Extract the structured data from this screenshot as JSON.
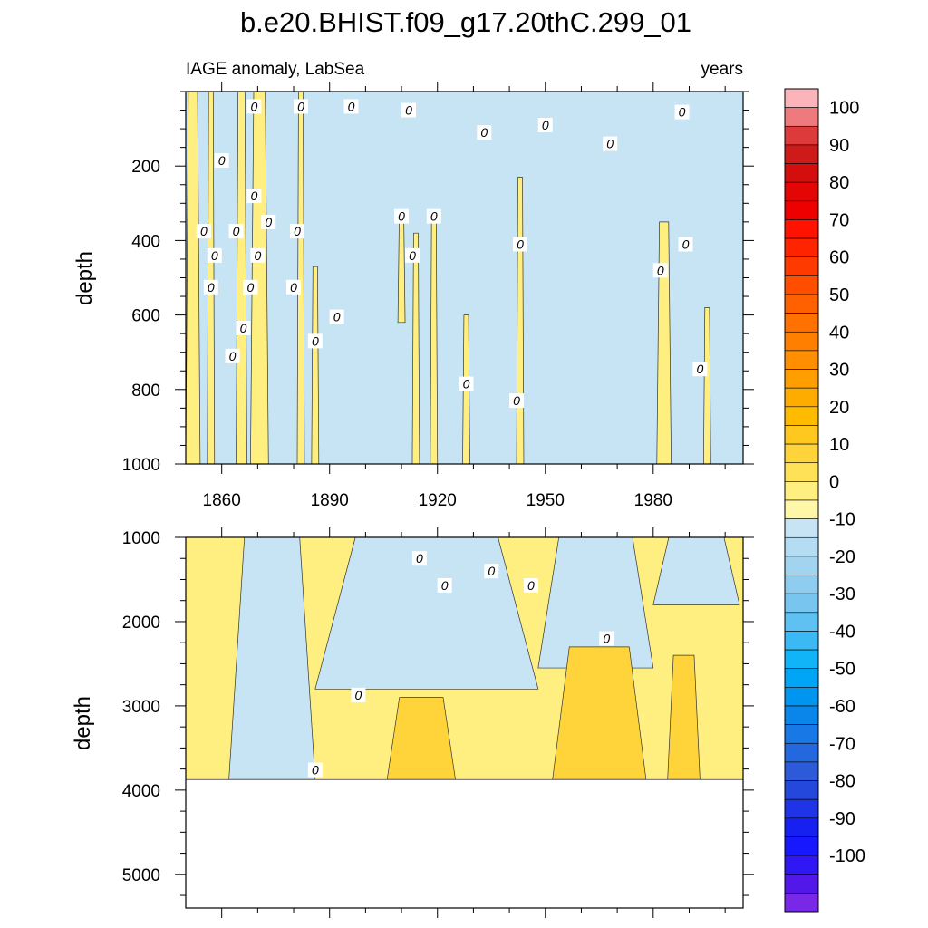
{
  "chart_data": [
    {
      "type": "heatmap",
      "panel": "upper",
      "title": "b.e20.BHIST.f09_g17.20thC.299_01",
      "subtitle_left": "IAGE anomaly, LabSea",
      "subtitle_right": "years",
      "xlabel": "",
      "ylabel": "depth",
      "xlim": [
        1850,
        2005
      ],
      "ylim": [
        0,
        1000
      ],
      "y_inverted": true,
      "x_ticks": [
        1860,
        1890,
        1920,
        1950,
        1980
      ],
      "y_ticks": [
        200,
        400,
        600,
        800,
        1000
      ],
      "background_bin": [
        -10,
        0
      ],
      "contour_label": "0",
      "regions": [
        {
          "bin": [
            0,
            10
          ],
          "depth_top": 0,
          "depth_bottom": 1000,
          "x_start": 1850,
          "x_end": 1854
        },
        {
          "bin": [
            0,
            10
          ],
          "depth_top": 0,
          "depth_bottom": 1000,
          "x_start": 1856,
          "x_end": 1858
        },
        {
          "bin": [
            0,
            10
          ],
          "depth_top": 0,
          "depth_bottom": 1000,
          "x_start": 1864,
          "x_end": 1867
        },
        {
          "bin": [
            0,
            10
          ],
          "depth_top": 0,
          "depth_bottom": 1000,
          "x_start": 1868,
          "x_end": 1873
        },
        {
          "bin": [
            0,
            10
          ],
          "depth_top": 0,
          "depth_bottom": 1000,
          "x_start": 1881,
          "x_end": 1883
        },
        {
          "bin": [
            0,
            10
          ],
          "depth_top": 470,
          "depth_bottom": 1000,
          "x_start": 1885,
          "x_end": 1887
        },
        {
          "bin": [
            0,
            10
          ],
          "depth_top": 340,
          "depth_bottom": 620,
          "x_start": 1909,
          "x_end": 1911
        },
        {
          "bin": [
            0,
            10
          ],
          "depth_top": 380,
          "depth_bottom": 1000,
          "x_start": 1913,
          "x_end": 1915
        },
        {
          "bin": [
            0,
            10
          ],
          "depth_top": 330,
          "depth_bottom": 1000,
          "x_start": 1918,
          "x_end": 1920
        },
        {
          "bin": [
            0,
            10
          ],
          "depth_top": 600,
          "depth_bottom": 1000,
          "x_start": 1927,
          "x_end": 1929
        },
        {
          "bin": [
            0,
            10
          ],
          "depth_top": 230,
          "depth_bottom": 1000,
          "x_start": 1942,
          "x_end": 1944
        },
        {
          "bin": [
            0,
            10
          ],
          "depth_top": 350,
          "depth_bottom": 1000,
          "x_start": 1981,
          "x_end": 1985
        },
        {
          "bin": [
            0,
            10
          ],
          "depth_top": 580,
          "depth_bottom": 1000,
          "x_start": 1994,
          "x_end": 1996
        }
      ],
      "contour_label_points": [
        {
          "x": 1869,
          "depth": 40
        },
        {
          "x": 1882,
          "depth": 40
        },
        {
          "x": 1896,
          "depth": 40
        },
        {
          "x": 1912,
          "depth": 50
        },
        {
          "x": 1988,
          "depth": 55
        },
        {
          "x": 1950,
          "depth": 90
        },
        {
          "x": 1933,
          "depth": 110
        },
        {
          "x": 1968,
          "depth": 140
        },
        {
          "x": 1860,
          "depth": 185
        },
        {
          "x": 1869,
          "depth": 280
        },
        {
          "x": 1873,
          "depth": 350
        },
        {
          "x": 1910,
          "depth": 335
        },
        {
          "x": 1919,
          "depth": 335
        },
        {
          "x": 1855,
          "depth": 375
        },
        {
          "x": 1864,
          "depth": 375
        },
        {
          "x": 1881,
          "depth": 375
        },
        {
          "x": 1858,
          "depth": 440
        },
        {
          "x": 1870,
          "depth": 440
        },
        {
          "x": 1913,
          "depth": 440
        },
        {
          "x": 1943,
          "depth": 410
        },
        {
          "x": 1989,
          "depth": 410
        },
        {
          "x": 1982,
          "depth": 480
        },
        {
          "x": 1857,
          "depth": 525
        },
        {
          "x": 1868,
          "depth": 525
        },
        {
          "x": 1880,
          "depth": 525
        },
        {
          "x": 1892,
          "depth": 605
        },
        {
          "x": 1866,
          "depth": 635
        },
        {
          "x": 1886,
          "depth": 670
        },
        {
          "x": 1863,
          "depth": 710
        },
        {
          "x": 1993,
          "depth": 745
        },
        {
          "x": 1928,
          "depth": 785
        },
        {
          "x": 1942,
          "depth": 830
        }
      ]
    },
    {
      "type": "heatmap",
      "panel": "lower",
      "xlabel": "",
      "ylabel": "depth",
      "xlim": [
        1850,
        2005
      ],
      "ylim": [
        1000,
        5400
      ],
      "y_inverted": true,
      "y_ticks": [
        1000,
        2000,
        3000,
        4000,
        5000
      ],
      "data_max_depth": 3875,
      "background_bin": [
        0,
        10
      ],
      "contour_label": "0",
      "regions": [
        {
          "bin": [
            -10,
            0
          ],
          "depth_top": 1000,
          "depth_bottom": 3875,
          "x_start": 1862,
          "x_end": 1886
        },
        {
          "bin": [
            -10,
            0
          ],
          "depth_top": 1000,
          "depth_bottom": 2800,
          "x_start": 1886,
          "x_end": 1948
        },
        {
          "bin": [
            -10,
            0
          ],
          "depth_top": 1000,
          "depth_bottom": 2550,
          "x_start": 1948,
          "x_end": 1980
        },
        {
          "bin": [
            -10,
            0
          ],
          "depth_top": 1000,
          "depth_bottom": 1800,
          "x_start": 1980,
          "x_end": 2004
        },
        {
          "bin": [
            10,
            20
          ],
          "depth_top": 2900,
          "depth_bottom": 3875,
          "x_start": 1906,
          "x_end": 1925
        },
        {
          "bin": [
            10,
            20
          ],
          "depth_top": 2300,
          "depth_bottom": 3875,
          "x_start": 1952,
          "x_end": 1978
        },
        {
          "bin": [
            10,
            20
          ],
          "depth_top": 2400,
          "depth_bottom": 3875,
          "x_start": 1984,
          "x_end": 1993
        }
      ],
      "contour_label_points": [
        {
          "x": 1915,
          "depth": 1250
        },
        {
          "x": 1935,
          "depth": 1400
        },
        {
          "x": 1922,
          "depth": 1570
        },
        {
          "x": 1946,
          "depth": 1570
        },
        {
          "x": 1967,
          "depth": 2200
        },
        {
          "x": 1898,
          "depth": 2870
        },
        {
          "x": 1886,
          "depth": 3760
        }
      ]
    }
  ],
  "colorbar": {
    "labels": [
      "100",
      "90",
      "80",
      "70",
      "60",
      "50",
      "40",
      "30",
      "20",
      "10",
      "0",
      "-10",
      "-20",
      "-30",
      "-40",
      "-50",
      "-60",
      "-70",
      "-80",
      "-90",
      "-100"
    ],
    "colors": [
      "#fbb4b9",
      "#ee7a7e",
      "#dd3b3b",
      "#cf1a1a",
      "#d40d0d",
      "#e40505",
      "#ee0000",
      "#ff1200",
      "#ff2400",
      "#ff3a00",
      "#ff4e00",
      "#ff6000",
      "#ff7100",
      "#ff8000",
      "#ff8f00",
      "#ff9e00",
      "#ffac00",
      "#ffbb00",
      "#ffc81e",
      "#ffd43a",
      "#ffe158",
      "#ffef80",
      "#fff7a8",
      "#c6e4f4",
      "#b4dcf2",
      "#a2d4f0",
      "#8ecdef",
      "#78c6ef",
      "#5fc0f2",
      "#3ab9f5",
      "#12b4f8",
      "#00a6f5",
      "#0096f0",
      "#0a86ea",
      "#1878e6",
      "#2468e0",
      "#2d5ad8",
      "#2448dc",
      "#1f34e6",
      "#1620f0",
      "#1818ff",
      "#3018f4",
      "#5218ea",
      "#7828e6"
    ]
  }
}
